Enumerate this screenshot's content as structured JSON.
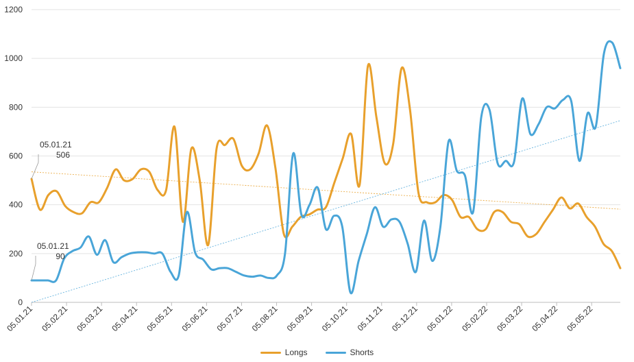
{
  "chart_data": {
    "type": "line",
    "title": "",
    "xlabel": "",
    "ylabel": "",
    "ylim": [
      0,
      1200
    ],
    "yticks": [
      0,
      200,
      400,
      600,
      800,
      1000,
      1200
    ],
    "grid": true,
    "legend_position": "bottom-center",
    "x_range": [
      0,
      74
    ],
    "x_tick_labels": [
      "05.01.21",
      "05.02.21",
      "05.03.21",
      "05.04.21",
      "05.05.21",
      "05.06.21",
      "05.07.21",
      "05.08.21",
      "05.09.21",
      "05.10.21",
      "05.11.21",
      "05.12.21",
      "05.01.22",
      "05.02.22",
      "05.03.22",
      "05.04.22",
      "05.05.22"
    ],
    "x_tick_positions": [
      0,
      4.4,
      8.8,
      13.2,
      17.6,
      22,
      26.4,
      30.8,
      35.2,
      39.6,
      44,
      48.4,
      52.8,
      57.2,
      61.6,
      66,
      70.4
    ],
    "series": [
      {
        "name": "Longs",
        "color": "#E8A02C",
        "values": [
          506,
          380,
          440,
          455,
          395,
          370,
          365,
          410,
          410,
          470,
          545,
          500,
          505,
          545,
          535,
          460,
          460,
          720,
          330,
          630,
          500,
          235,
          630,
          645,
          670,
          560,
          545,
          610,
          725,
          550,
          280,
          310,
          350,
          360,
          380,
          390,
          490,
          590,
          690,
          480,
          970,
          760,
          570,
          650,
          960,
          790,
          450,
          410,
          410,
          440,
          420,
          350,
          350,
          300,
          300,
          370,
          370,
          330,
          320,
          270,
          280,
          330,
          380,
          430,
          385,
          405,
          350,
          310,
          240,
          210,
          140
        ],
        "trendline": [
          535,
          382
        ]
      },
      {
        "name": "Shorts",
        "color": "#49A5D8",
        "values": [
          90,
          90,
          90,
          90,
          180,
          210,
          225,
          270,
          195,
          255,
          165,
          185,
          200,
          205,
          205,
          200,
          200,
          125,
          110,
          370,
          205,
          175,
          135,
          140,
          140,
          125,
          110,
          105,
          110,
          100,
          110,
          200,
          610,
          360,
          400,
          470,
          300,
          355,
          310,
          40,
          170,
          280,
          390,
          310,
          340,
          330,
          240,
          125,
          335,
          170,
          310,
          660,
          540,
          520,
          370,
          760,
          790,
          570,
          580,
          575,
          835,
          690,
          730,
          800,
          795,
          830,
          825,
          580,
          775,
          720,
          1020,
          1065,
          960
        ],
        "trendline": [
          0,
          745
        ]
      }
    ],
    "annotations": [
      {
        "series": "Longs",
        "date": "05.01.21",
        "value": "506"
      },
      {
        "series": "Shorts",
        "date": "05.01.21",
        "value": "90"
      }
    ]
  }
}
